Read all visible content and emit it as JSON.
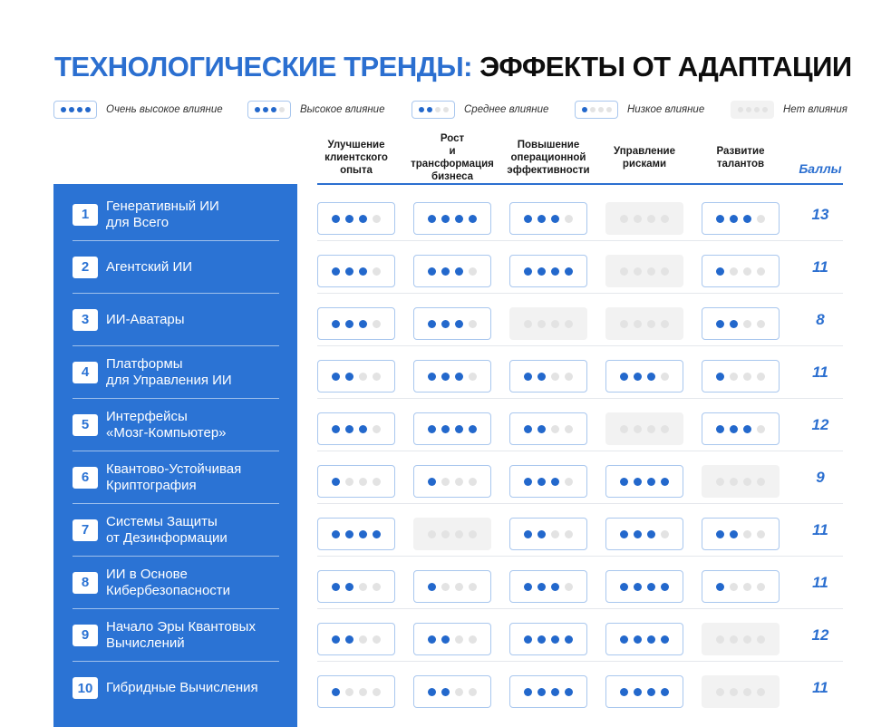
{
  "title": {
    "part1": "ТЕХНОЛОГИЧЕСКИЕ ТРЕНДЫ:",
    "part2": "ЭФФЕКТЫ ОТ АДАПТАЦИИ"
  },
  "legend": [
    {
      "label": "Очень высокое влияние",
      "level": 4
    },
    {
      "label": "Высокое влияние",
      "level": 3
    },
    {
      "label": "Среднее влияние",
      "level": 2
    },
    {
      "label": "Низкое влияние",
      "level": 1
    },
    {
      "label": "Нет влияния",
      "level": 0
    }
  ],
  "columns": [
    "Улучшение\nклиентского\nопыта",
    "Рост\nи трансформация\nбизнеса",
    "Повышение\nоперационной\nэффективности",
    "Управление\nрисками",
    "Развитие\nталантов"
  ],
  "score_header": "Баллы",
  "rows": [
    {
      "num": "1",
      "name": "Генеративный ИИ\nдля Всего",
      "levels": [
        3,
        4,
        3,
        0,
        3
      ],
      "score": "13"
    },
    {
      "num": "2",
      "name": "Агентский ИИ",
      "levels": [
        3,
        3,
        4,
        0,
        1
      ],
      "score": "11"
    },
    {
      "num": "3",
      "name": "ИИ-Аватары",
      "levels": [
        3,
        3,
        0,
        0,
        2
      ],
      "score": "8"
    },
    {
      "num": "4",
      "name": "Платформы\nдля Управления ИИ",
      "levels": [
        2,
        3,
        2,
        3,
        1
      ],
      "score": "11"
    },
    {
      "num": "5",
      "name": "Интерфейсы\n«Мозг-Компьютер»",
      "levels": [
        3,
        4,
        2,
        0,
        3
      ],
      "score": "12"
    },
    {
      "num": "6",
      "name": "Квантово-Устойчивая\nКриптография",
      "levels": [
        1,
        1,
        3,
        4,
        0
      ],
      "score": "9"
    },
    {
      "num": "7",
      "name": "Системы Защиты\nот Дезинформации",
      "levels": [
        4,
        0,
        2,
        3,
        2
      ],
      "score": "11"
    },
    {
      "num": "8",
      "name": "ИИ в Основе\nКибербезопасности",
      "levels": [
        2,
        1,
        3,
        4,
        1
      ],
      "score": "11"
    },
    {
      "num": "9",
      "name": "Начало Эры Квантовых\nВычислений",
      "levels": [
        2,
        2,
        4,
        4,
        0
      ],
      "score": "12"
    },
    {
      "num": "10",
      "name": "Гибридные Вычисления",
      "levels": [
        1,
        2,
        4,
        4,
        0
      ],
      "score": "11"
    }
  ]
}
